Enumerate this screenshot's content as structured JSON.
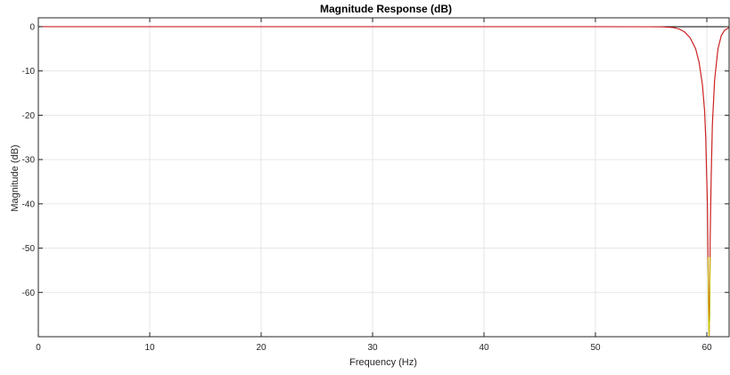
{
  "chart_data": {
    "type": "line",
    "title": "Magnitude Response (dB)",
    "xlabel": "Frequency (Hz)",
    "ylabel": "Magnitude (dB)",
    "xlim": [
      0,
      62
    ],
    "ylim": [
      -70,
      2
    ],
    "xticks": [
      0,
      10,
      20,
      30,
      40,
      50,
      60
    ],
    "yticks": [
      0,
      -10,
      -20,
      -30,
      -40,
      -50,
      -60
    ],
    "grid": true,
    "colors": {
      "axis": "#262626",
      "grid": "#e6e6e6",
      "zero_line": "#000000",
      "response": "#cc2222",
      "response_alt": "#c8c800"
    },
    "series": [
      {
        "color": "#cc2222",
        "x": [
          0,
          40,
          50,
          55,
          56,
          57,
          57.5,
          58,
          58.5,
          59,
          59.3,
          59.6,
          59.8,
          59.9,
          60.0,
          60.05,
          60.1,
          60.15,
          60.2,
          60.25,
          60.3,
          60.35,
          60.4,
          60.5,
          60.7,
          61.0,
          61.3,
          61.6,
          62
        ],
        "y": [
          0,
          0,
          0,
          -0.02,
          -0.05,
          -0.2,
          -0.5,
          -1.2,
          -2.5,
          -5,
          -8,
          -13,
          -19,
          -25,
          -35,
          -40,
          -50,
          -62,
          -70,
          -65,
          -48,
          -40,
          -33,
          -22,
          -12,
          -5,
          -2,
          -0.8,
          -0.2
        ]
      },
      {
        "color": "#c8c800",
        "x": [
          60.1,
          60.15,
          60.2,
          60.25,
          60.3
        ],
        "y": [
          -52,
          -66,
          -70,
          -66,
          -52
        ]
      }
    ]
  }
}
